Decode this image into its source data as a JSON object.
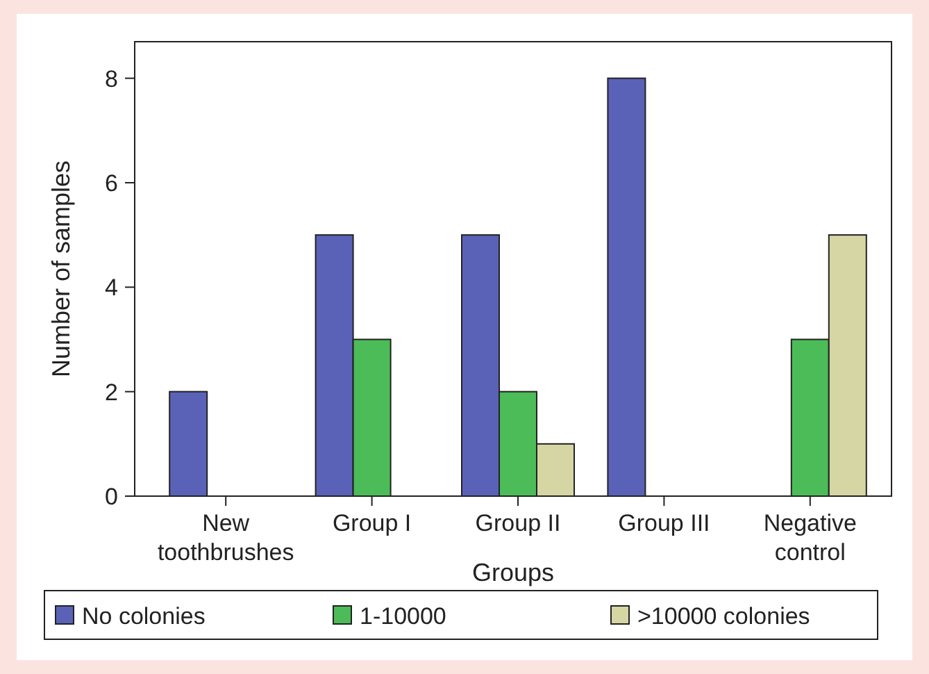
{
  "chart_data": {
    "type": "bar",
    "xlabel": "Groups",
    "ylabel": "Number of samples",
    "categories": [
      "New toothbrushes",
      "Group I",
      "Group II",
      "Group III",
      "Negative control"
    ],
    "series": [
      {
        "name": "No colonies",
        "color": "#5a62b8",
        "values": [
          2,
          5,
          5,
          8,
          0
        ]
      },
      {
        "name": "1-10000",
        "color": "#4cbc58",
        "values": [
          0,
          3,
          2,
          0,
          3
        ]
      },
      {
        "name": ">10000 colonies",
        "color": "#d6d6a4",
        "values": [
          0,
          0,
          1,
          0,
          5
        ]
      }
    ],
    "ylim": [
      0,
      8.7
    ],
    "yticks": [
      0,
      2,
      4,
      6,
      8
    ],
    "grid": false,
    "legend": "bottom"
  }
}
